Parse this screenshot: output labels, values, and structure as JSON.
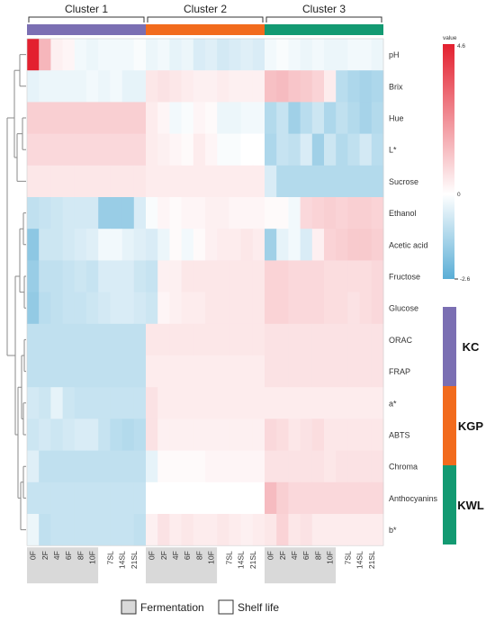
{
  "chart_data": {
    "type": "heatmap",
    "clusters": [
      {
        "label": "Cluster 1",
        "color": "#7b6fb3",
        "columns": 10
      },
      {
        "label": "Cluster 2",
        "color": "#f26b1d",
        "columns": 10
      },
      {
        "label": "Cluster 3",
        "color": "#139a72",
        "columns": 10
      }
    ],
    "column_labels": [
      "0F",
      "2F",
      "4F",
      "6F",
      "8F",
      "10F",
      "7SL",
      "14SL",
      "21SL"
    ],
    "column_label_positions": [
      0,
      2,
      4,
      6,
      8,
      10,
      13,
      15,
      17
    ],
    "rows": [
      "pH",
      "Brix",
      "Hue",
      "L*",
      "Sucrose",
      "Ethanol",
      "Acetic acid",
      "Fructose",
      "Glucose",
      "ORAC",
      "FRAP",
      "a*",
      "ABTS",
      "Chroma",
      "Anthocyanins",
      "b*"
    ],
    "values": [
      [
        4.6,
        1.5,
        0.3,
        0.2,
        -0.2,
        -0.3,
        -0.2,
        -0.2,
        -0.2,
        -0.1,
        -0.3,
        -0.2,
        -0.4,
        -0.3,
        -0.6,
        -0.5,
        -0.7,
        -0.6,
        -0.5,
        -0.6,
        -0.2,
        -0.1,
        -0.2,
        -0.3,
        -0.2,
        -0.3,
        -0.3,
        -0.2,
        -0.2,
        -0.3
      ],
      [
        -0.4,
        -0.3,
        -0.3,
        -0.3,
        -0.3,
        -0.2,
        -0.3,
        -0.2,
        -0.4,
        -0.4,
        0.5,
        0.6,
        0.5,
        0.4,
        0.3,
        0.3,
        0.4,
        0.3,
        0.3,
        0.3,
        1.3,
        1.4,
        1.2,
        1.1,
        0.9,
        0.4,
        -1.1,
        -1.3,
        -1.4,
        -1.3
      ],
      [
        1.0,
        1.0,
        1.0,
        1.0,
        1.0,
        1.0,
        1.0,
        1.0,
        1.0,
        1.0,
        0.4,
        0.2,
        -0.2,
        -0.1,
        0.2,
        0.1,
        -0.3,
        -0.3,
        -0.2,
        -0.2,
        -1.2,
        -0.9,
        -1.5,
        -1.1,
        -0.8,
        -1.3,
        -1.0,
        -1.2,
        -1.4,
        -1.2
      ],
      [
        0.8,
        0.8,
        0.8,
        0.8,
        0.8,
        0.8,
        0.8,
        0.8,
        0.8,
        0.8,
        0.4,
        0.3,
        0.2,
        0.1,
        0.4,
        0.2,
        -0.1,
        -0.1,
        0.0,
        0.0,
        -1.3,
        -0.9,
        -1.0,
        -0.6,
        -1.5,
        -0.8,
        -1.2,
        -1.0,
        -0.7,
        -1.1
      ],
      [
        0.5,
        0.5,
        0.5,
        0.5,
        0.5,
        0.5,
        0.5,
        0.5,
        0.5,
        0.5,
        0.4,
        0.4,
        0.4,
        0.4,
        0.4,
        0.4,
        0.4,
        0.4,
        0.4,
        0.4,
        -0.6,
        -1.2,
        -1.2,
        -1.2,
        -1.2,
        -1.2,
        -1.2,
        -1.2,
        -1.2,
        -1.2
      ],
      [
        -1.0,
        -0.9,
        -0.8,
        -0.7,
        -0.7,
        -0.7,
        -1.6,
        -1.6,
        -1.6,
        -0.6,
        -0.1,
        0.2,
        0.1,
        0.2,
        0.2,
        0.3,
        0.3,
        0.2,
        0.2,
        0.2,
        0.1,
        0.1,
        -0.2,
        0.8,
        0.9,
        1.0,
        0.9,
        1.0,
        1.0,
        0.9
      ],
      [
        -1.8,
        -0.8,
        -0.8,
        -0.7,
        -0.6,
        -0.5,
        -0.2,
        -0.2,
        -0.4,
        -0.5,
        -0.6,
        -0.3,
        0.1,
        -0.2,
        0.1,
        0.3,
        0.4,
        0.4,
        0.5,
        0.4,
        -1.5,
        -0.4,
        -0.2,
        -0.6,
        0.3,
        0.9,
        1.0,
        1.1,
        1.1,
        1.0
      ],
      [
        -1.6,
        -1.0,
        -1.0,
        -0.9,
        -0.8,
        -0.9,
        -0.6,
        -0.6,
        -0.6,
        -0.8,
        -0.9,
        0.3,
        0.3,
        0.5,
        0.5,
        0.5,
        0.5,
        0.5,
        0.5,
        0.5,
        0.9,
        0.9,
        0.8,
        0.8,
        0.8,
        0.7,
        0.7,
        0.7,
        0.7,
        0.8
      ],
      [
        -1.7,
        -1.1,
        -1.0,
        -0.9,
        -0.9,
        -0.8,
        -0.7,
        -0.6,
        -0.6,
        -0.7,
        -0.8,
        0.2,
        0.3,
        0.4,
        0.4,
        0.5,
        0.5,
        0.5,
        0.5,
        0.5,
        0.9,
        0.9,
        0.8,
        0.8,
        0.8,
        0.7,
        0.7,
        0.6,
        0.7,
        0.8
      ],
      [
        -1.0,
        -1.0,
        -1.0,
        -1.0,
        -1.0,
        -1.0,
        -1.0,
        -1.0,
        -1.0,
        -1.0,
        0.5,
        0.5,
        0.5,
        0.5,
        0.5,
        0.5,
        0.5,
        0.5,
        0.5,
        0.5,
        0.6,
        0.6,
        0.6,
        0.6,
        0.6,
        0.6,
        0.6,
        0.6,
        0.6,
        0.6
      ],
      [
        -1.0,
        -1.0,
        -1.0,
        -1.0,
        -1.0,
        -1.0,
        -1.0,
        -1.0,
        -1.0,
        -1.0,
        0.4,
        0.4,
        0.4,
        0.4,
        0.4,
        0.4,
        0.4,
        0.4,
        0.4,
        0.4,
        0.6,
        0.6,
        0.6,
        0.6,
        0.6,
        0.6,
        0.6,
        0.6,
        0.6,
        0.6
      ],
      [
        -0.7,
        -0.8,
        -0.4,
        -0.8,
        -0.9,
        -0.9,
        -0.9,
        -0.9,
        -0.9,
        -0.9,
        0.6,
        0.4,
        0.4,
        0.4,
        0.4,
        0.4,
        0.4,
        0.4,
        0.4,
        0.4,
        0.4,
        0.4,
        0.4,
        0.4,
        0.4,
        0.4,
        0.4,
        0.4,
        0.4,
        0.4
      ],
      [
        -0.8,
        -0.7,
        -0.8,
        -0.7,
        -0.6,
        -0.6,
        -0.9,
        -1.1,
        -1.2,
        -1.1,
        0.6,
        0.3,
        0.3,
        0.3,
        0.3,
        0.3,
        0.3,
        0.3,
        0.3,
        0.3,
        0.8,
        0.7,
        0.5,
        0.6,
        0.7,
        0.5,
        0.5,
        0.5,
        0.5,
        0.5
      ],
      [
        -0.5,
        -1.0,
        -1.0,
        -1.0,
        -1.0,
        -1.0,
        -1.0,
        -1.0,
        -1.0,
        -1.0,
        -0.4,
        0.1,
        0.1,
        0.1,
        0.1,
        0.2,
        0.2,
        0.2,
        0.2,
        0.2,
        0.6,
        0.6,
        0.6,
        0.6,
        0.6,
        0.5,
        0.6,
        0.6,
        0.6,
        0.6
      ],
      [
        -0.9,
        -0.9,
        -0.9,
        -0.9,
        -0.9,
        -0.9,
        -0.9,
        -0.9,
        -0.9,
        -0.9,
        0.0,
        0.0,
        0.0,
        0.0,
        0.0,
        0.0,
        0.0,
        0.0,
        0.0,
        0.0,
        1.4,
        1.0,
        0.8,
        0.8,
        0.8,
        0.8,
        0.8,
        0.8,
        0.8,
        0.8
      ],
      [
        -0.3,
        -1.0,
        -0.9,
        -0.9,
        -0.9,
        -0.9,
        -0.9,
        -0.9,
        -0.9,
        -1.0,
        0.3,
        0.6,
        0.4,
        0.5,
        0.4,
        0.4,
        0.5,
        0.4,
        0.3,
        0.4,
        0.5,
        0.9,
        0.5,
        0.6,
        0.4,
        0.4,
        0.4,
        0.4,
        0.4,
        0.4
      ]
    ],
    "scale": {
      "title": "value",
      "max_label": "4.6",
      "mid_label": "0",
      "min_label": "-2.6",
      "min": -2.6,
      "max": 4.6,
      "colors": {
        "low": "#5aaed6",
        "mid": "#ffffff",
        "high": "#e3202f"
      }
    },
    "groups": [
      {
        "label": "KC",
        "color": "#7b6fb3"
      },
      {
        "label": "KGP",
        "color": "#f26b1d"
      },
      {
        "label": "KWL",
        "color": "#139a72"
      }
    ],
    "legend": [
      {
        "label": "Fermentation",
        "fill": "#d9d9d9"
      },
      {
        "label": "Shelf life",
        "fill": "#ffffff"
      }
    ]
  }
}
